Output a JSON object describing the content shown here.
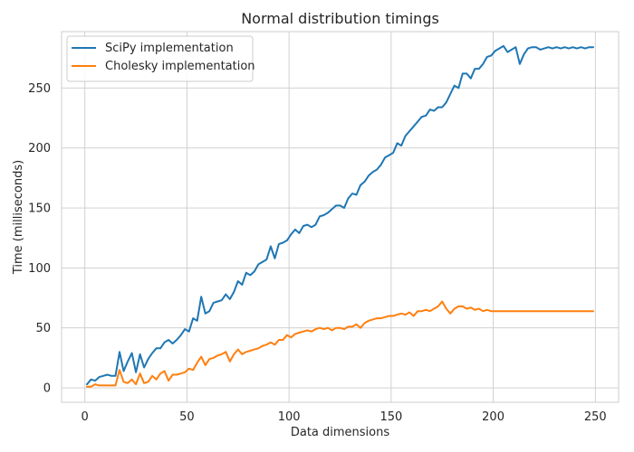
{
  "chart_data": {
    "type": "line",
    "title": "Normal distribution timings",
    "xlabel": "Data dimensions",
    "ylabel": "Time (milliseconds)",
    "xlim": [
      -11.4,
      261.4
    ],
    "ylim": [
      -12,
      297
    ],
    "x_ticks": [
      0,
      50,
      100,
      150,
      200,
      250
    ],
    "y_ticks": [
      0,
      50,
      100,
      150,
      200,
      250
    ],
    "grid": true,
    "legend_position": "top-left",
    "x_start": 1,
    "x_step": 2,
    "series": [
      {
        "name": "SciPy implementation",
        "color": "#1f77b4",
        "values": [
          3,
          7,
          6,
          9,
          10,
          11,
          10,
          10,
          30,
          14,
          22,
          29,
          13,
          28,
          17,
          24,
          29,
          33,
          33,
          38,
          40,
          37,
          40,
          44,
          49,
          47,
          58,
          56,
          76,
          62,
          64,
          71,
          72,
          73,
          78,
          74,
          80,
          89,
          86,
          96,
          94,
          97,
          103,
          105,
          107,
          118,
          108,
          120,
          121,
          123,
          128,
          132,
          129,
          135,
          136,
          134,
          136,
          143,
          144,
          146,
          149,
          152,
          152,
          150,
          158,
          162,
          161,
          169,
          172,
          177,
          180,
          182,
          186,
          192,
          194,
          196,
          204,
          202,
          210,
          214,
          218,
          222,
          226,
          227,
          232,
          231,
          234,
          234,
          238,
          245,
          252,
          250,
          262,
          262,
          258,
          266,
          266,
          270,
          276,
          277,
          281,
          283,
          285,
          280,
          282,
          284,
          270,
          278,
          283,
          284,
          284,
          282,
          283,
          284,
          283,
          284,
          283,
          284,
          283,
          284,
          283,
          284,
          283,
          284,
          284
        ]
      },
      {
        "name": "Cholesky implementation",
        "color": "#ff7f0e",
        "values": [
          1,
          1,
          3,
          2,
          2,
          2,
          2,
          2,
          15,
          5,
          4,
          7,
          3,
          12,
          4,
          5,
          10,
          7,
          12,
          14,
          6,
          11,
          11,
          12,
          13,
          16,
          15,
          21,
          26,
          19,
          24,
          25,
          27,
          28,
          30,
          22,
          28,
          32,
          28,
          30,
          31,
          32,
          33,
          35,
          36,
          38,
          36,
          40,
          40,
          44,
          42,
          45,
          46,
          47,
          48,
          47,
          49,
          50,
          49,
          50,
          48,
          50,
          50,
          49,
          51,
          51,
          53,
          50,
          54,
          56,
          57,
          58,
          58,
          59,
          60,
          60,
          61,
          62,
          61,
          63,
          60,
          64,
          64,
          65,
          64,
          66,
          68,
          72,
          66,
          62,
          66,
          68,
          68,
          66,
          67,
          65,
          66,
          64,
          65,
          64,
          64,
          64,
          64,
          64,
          64,
          64,
          64,
          64,
          64,
          64,
          64,
          64,
          64,
          64,
          64,
          64,
          64,
          64,
          64,
          64,
          64,
          64,
          64,
          64,
          64
        ]
      }
    ]
  }
}
